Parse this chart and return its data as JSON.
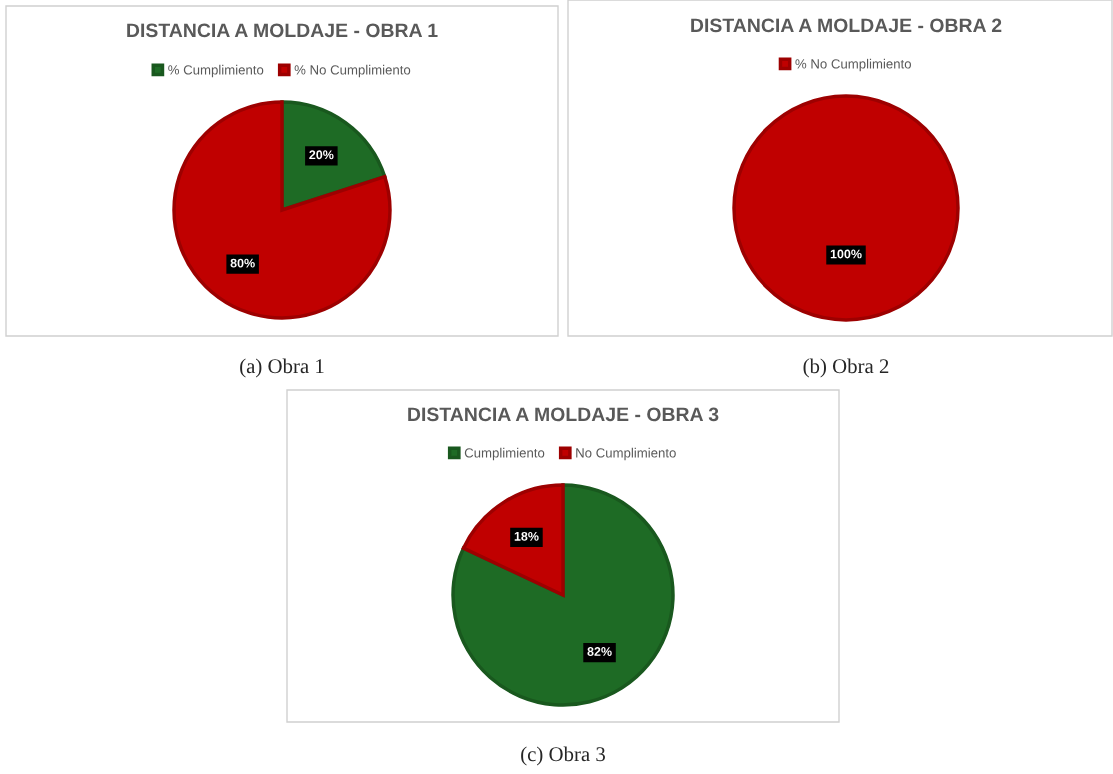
{
  "chart_data": [
    {
      "type": "pie",
      "title": "DISTANCIA A MOLDAJE - OBRA 1",
      "categories": [
        "% Cumplimiento",
        "% No Cumplimiento"
      ],
      "values": [
        20,
        80
      ],
      "colors": [
        "#1e6b25",
        "#c00000"
      ],
      "value_labels": [
        "20%",
        "80%"
      ],
      "legend": "top",
      "annotations": [
        "(a) Obra 1"
      ]
    },
    {
      "type": "pie",
      "title": "DISTANCIA A MOLDAJE - OBRA 2",
      "categories": [
        "% No Cumplimiento"
      ],
      "values": [
        100
      ],
      "colors": [
        "#c00000"
      ],
      "value_labels": [
        "100%"
      ],
      "legend": "top",
      "annotations": [
        "(b) Obra 2"
      ]
    },
    {
      "type": "pie",
      "title": "DISTANCIA A MOLDAJE - OBRA 3",
      "categories": [
        "Cumplimiento",
        "No Cumplimiento"
      ],
      "values": [
        82,
        18
      ],
      "colors": [
        "#1e6b25",
        "#c00000"
      ],
      "value_labels": [
        "82%",
        "18%"
      ],
      "legend": "top",
      "annotations": [
        "(c) Obra 3"
      ]
    }
  ]
}
